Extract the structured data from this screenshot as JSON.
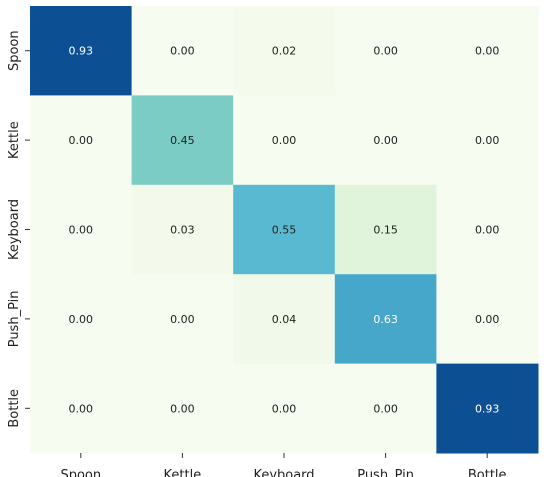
{
  "chart_data": {
    "type": "heatmap",
    "title": "",
    "xlabel": "",
    "ylabel": "",
    "x_categories": [
      "Spoon",
      "Kettle",
      "Keyboard",
      "Push_Pin",
      "Bottle"
    ],
    "y_categories": [
      "Spoon",
      "Kettle",
      "Keyboard",
      "Push_Pin",
      "Bottle"
    ],
    "values": [
      [
        0.93,
        0.0,
        0.02,
        0.0,
        0.0
      ],
      [
        0.0,
        0.45,
        0.0,
        0.0,
        0.0
      ],
      [
        0.0,
        0.03,
        0.55,
        0.15,
        0.0
      ],
      [
        0.0,
        0.0,
        0.04,
        0.63,
        0.0
      ],
      [
        0.0,
        0.0,
        0.0,
        0.0,
        0.93
      ]
    ],
    "value_range": [
      0,
      1
    ],
    "colormap": "YlGnBu",
    "grid": false,
    "legend": "none"
  }
}
